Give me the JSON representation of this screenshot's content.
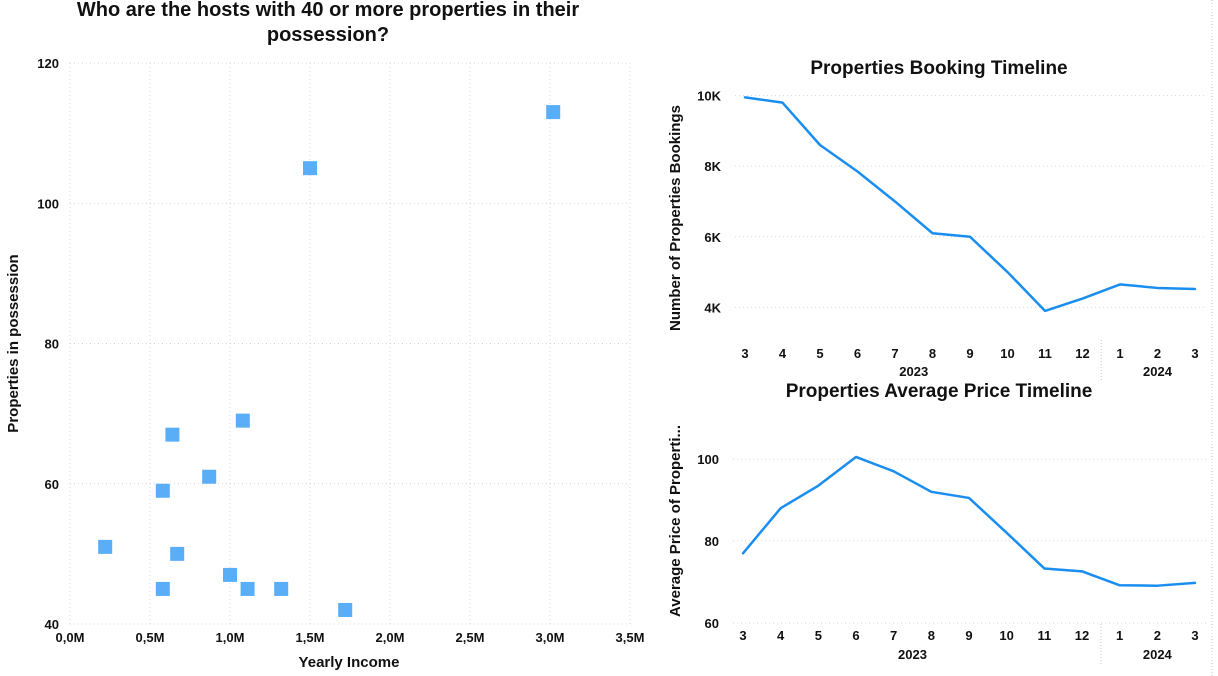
{
  "chart_data": [
    {
      "type": "scatter",
      "title": "Who are the hosts with 40 or more properties in their possession?",
      "xlabel": "Yearly Income",
      "ylabel": "Properties in possession",
      "xlim": [
        0,
        3.5
      ],
      "ylim": [
        40,
        120
      ],
      "x_ticks": [
        "0,0M",
        "0,5M",
        "1,0M",
        "1,5M",
        "2,0M",
        "2,5M",
        "3,0M",
        "3,5M"
      ],
      "y_ticks": [
        "40",
        "60",
        "80",
        "100",
        "120"
      ],
      "grid": true,
      "color": "#5aaef7",
      "points": [
        {
          "x": 0.22,
          "y": 51
        },
        {
          "x": 0.58,
          "y": 59
        },
        {
          "x": 0.58,
          "y": 45
        },
        {
          "x": 0.64,
          "y": 67
        },
        {
          "x": 0.67,
          "y": 50
        },
        {
          "x": 0.87,
          "y": 61
        },
        {
          "x": 1.0,
          "y": 47
        },
        {
          "x": 1.08,
          "y": 69
        },
        {
          "x": 1.11,
          "y": 45
        },
        {
          "x": 1.32,
          "y": 45
        },
        {
          "x": 1.5,
          "y": 105
        },
        {
          "x": 1.72,
          "y": 42
        },
        {
          "x": 3.02,
          "y": 113
        }
      ]
    },
    {
      "type": "line",
      "title": "Properties Booking Timeline",
      "xlabel": "",
      "ylabel": "Number of Properties Bookings",
      "categories": [
        "3",
        "4",
        "5",
        "6",
        "7",
        "8",
        "9",
        "10",
        "11",
        "12",
        "1",
        "2",
        "3"
      ],
      "year_groups": [
        {
          "label": "2023",
          "from": 0,
          "to": 9
        },
        {
          "label": "2024",
          "from": 10,
          "to": 12
        }
      ],
      "values": [
        9950,
        9800,
        8600,
        7850,
        7000,
        6100,
        6000,
        5000,
        3900,
        4250,
        4650,
        4550,
        4520
      ],
      "ylim": [
        3500,
        10300
      ],
      "y_ticks": [
        {
          "value": 4000,
          "label": "4K"
        },
        {
          "value": 6000,
          "label": "6K"
        },
        {
          "value": 8000,
          "label": "8K"
        },
        {
          "value": 10000,
          "label": "10K"
        }
      ],
      "grid": true,
      "color": "#1a8ef0"
    },
    {
      "type": "line",
      "title": "Properties Average Price Timeline",
      "xlabel": "",
      "ylabel": "Average Price of Properti...",
      "categories": [
        "3",
        "4",
        "5",
        "6",
        "7",
        "8",
        "9",
        "10",
        "11",
        "12",
        "1",
        "2",
        "3"
      ],
      "year_groups": [
        {
          "label": "2023",
          "from": 0,
          "to": 9
        },
        {
          "label": "2024",
          "from": 10,
          "to": 12
        }
      ],
      "values": [
        77,
        88,
        93.5,
        100.5,
        97,
        92,
        90.5,
        82,
        73.3,
        72.6,
        69.2,
        69.1,
        69.8
      ],
      "ylim": [
        60,
        110
      ],
      "y_ticks": [
        {
          "value": 60,
          "label": "60"
        },
        {
          "value": 80,
          "label": "80"
        },
        {
          "value": 100,
          "label": "100"
        }
      ],
      "grid": true,
      "color": "#1a8ef0"
    }
  ]
}
